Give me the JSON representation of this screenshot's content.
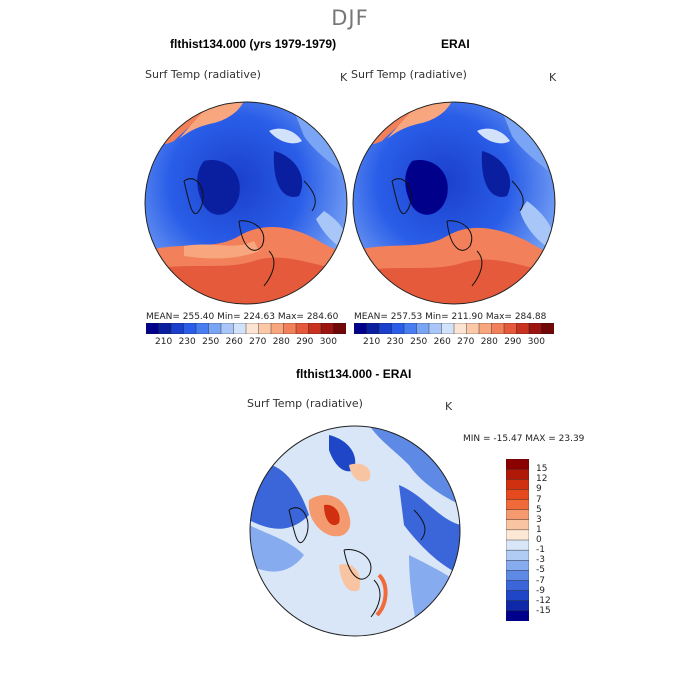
{
  "season": "DJF",
  "panels": {
    "model": {
      "title": "flthist134.000 (yrs 1979-1979)",
      "variable": "Surf Temp (radiative)",
      "units": "K",
      "stats": "MEAN= 255.40   Min= 224.63   Max= 284.60"
    },
    "obs": {
      "title": "ERAI",
      "variable": "Surf Temp (radiative)",
      "units": "K",
      "stats": "MEAN= 257.53   Min= 211.90   Max= 284.88"
    },
    "diff": {
      "title": "flthist134.000 - ERAI",
      "variable": "Surf Temp (radiative)",
      "units": "K",
      "stats": "MIN = -15.47 MAX =  23.39"
    }
  },
  "colorbar_abs": {
    "ticks": [
      "210",
      "230",
      "250",
      "260",
      "270",
      "280",
      "290",
      "300"
    ],
    "colors": [
      "#00008b",
      "#0a1fa0",
      "#1a3fcc",
      "#2a5ee8",
      "#4a7ef0",
      "#7aa4f4",
      "#a8c6f8",
      "#d2e2fb",
      "#fce4d2",
      "#fbc8a8",
      "#f8a67e",
      "#f2805a",
      "#e45a3a",
      "#c8321e",
      "#9c1410",
      "#700808"
    ]
  },
  "colorbar_diff": {
    "ticks": [
      "15",
      "12",
      "9",
      "7",
      "5",
      "3",
      "1",
      "0",
      "-1",
      "-3",
      "-5",
      "-7",
      "-9",
      "-12",
      "-15"
    ],
    "colors": [
      "#8b0000",
      "#b01808",
      "#d03010",
      "#e44a1e",
      "#f06a3a",
      "#f49a6e",
      "#f8c4a2",
      "#fde8d6",
      "#d8e6f8",
      "#b0cbf4",
      "#86abee",
      "#5e8ae6",
      "#3a66da",
      "#1e46c6",
      "#0e28a8",
      "#00008b"
    ]
  }
}
